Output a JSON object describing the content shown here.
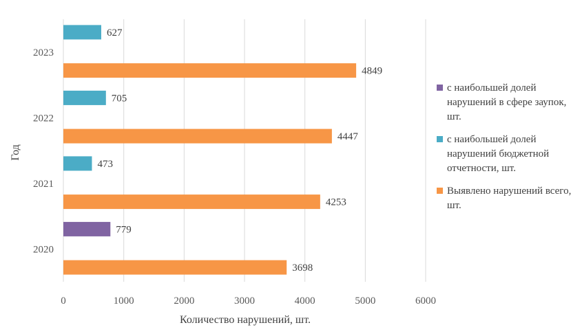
{
  "chart_data": {
    "type": "bar",
    "orientation": "horizontal",
    "xlabel": "Количество нарушений,  шт.",
    "ylabel": "Год",
    "xlim": [
      0,
      6000
    ],
    "x_ticks": [
      0,
      1000,
      2000,
      3000,
      4000,
      5000,
      6000
    ],
    "grid": "vertical",
    "legend_position": "right",
    "categories": [
      "2020",
      "2021",
      "2022",
      "2023"
    ],
    "series": [
      {
        "name": "с наибольшей долей нарушений в сфере заупок, шт.",
        "color": "#8064A2",
        "values": [
          779,
          null,
          null,
          null
        ]
      },
      {
        "name": "с наибольшей долей нарушений бюджетной отчетности, шт.",
        "color": "#4BACC6",
        "values": [
          null,
          473,
          705,
          627
        ]
      },
      {
        "name": "Выявлено нарушений всего, шт.",
        "color": "#F79646",
        "values": [
          3698,
          4253,
          4447,
          4849
        ]
      }
    ]
  }
}
